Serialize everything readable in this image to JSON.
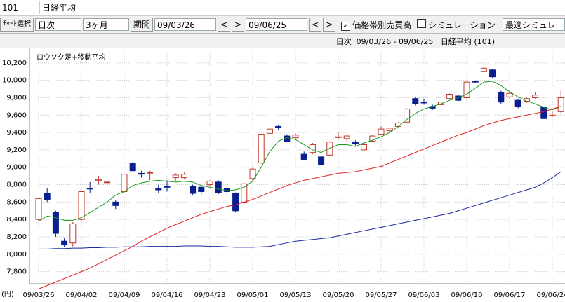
{
  "toolbar": {
    "code": "101",
    "name": "日経平均",
    "chart_select": "ﾁｬｰﾄ選択",
    "interval": "日次",
    "span": "3ヶ月",
    "period_label": "期間",
    "start": "09/03/26",
    "prev1": "<",
    "next1": ">",
    "end": "09/06/25",
    "prev2": "<",
    "next2": ">",
    "volume_profile": {
      "label": "価格帯別売買高",
      "checked": true
    },
    "simulation": {
      "label": "シミュレーション",
      "checked": false
    },
    "best_simulation": "最適シミュレーション"
  },
  "info": "日次  09/03/26 - 09/06/25   日経平均 (101)",
  "chart_data": {
    "type": "candlestick",
    "title": "ロウソク足+移動平均",
    "y_unit": "(円)",
    "categories": [
      "09/03/26",
      null,
      null,
      null,
      null,
      "09/04/02",
      null,
      null,
      null,
      null,
      "09/04/09",
      null,
      null,
      null,
      null,
      "09/04/16",
      null,
      null,
      null,
      null,
      "09/04/23",
      null,
      null,
      null,
      null,
      "09/05/01",
      null,
      null,
      null,
      null,
      "09/05/13",
      null,
      null,
      null,
      null,
      "09/05/20",
      null,
      null,
      null,
      null,
      "09/05/27",
      null,
      null,
      null,
      null,
      "09/06/03",
      null,
      null,
      null,
      null,
      "09/06/10",
      null,
      null,
      null,
      null,
      "09/06/17",
      null,
      null,
      null,
      null,
      "09/06/24",
      null
    ],
    "open": [
      8400,
      8700,
      8480,
      8150,
      8130,
      8400,
      8760,
      8850,
      8830,
      8600,
      8720,
      9050,
      8930,
      8940,
      8760,
      8780,
      8880,
      8880,
      8780,
      8770,
      8800,
      8830,
      8760,
      8700,
      8600,
      8870,
      9050,
      9390,
      9470,
      9360,
      9340,
      9150,
      9170,
      9120,
      9140,
      9350,
      9330,
      9290,
      9200,
      9300,
      9380,
      9420,
      9470,
      9520,
      9790,
      9750,
      9700,
      9720,
      9790,
      9820,
      9800,
      9990,
      10100,
      10120,
      9860,
      9810,
      9770,
      9760,
      9800,
      9690,
      9590,
      9640
    ],
    "high": [
      8650,
      8760,
      8500,
      8190,
      8370,
      8730,
      8830,
      8900,
      8870,
      8620,
      8930,
      9060,
      8960,
      8960,
      8800,
      8850,
      8930,
      8940,
      8800,
      8790,
      8850,
      8850,
      8790,
      8710,
      8820,
      9000,
      9380,
      9450,
      9490,
      9380,
      9390,
      9180,
      9280,
      9140,
      9300,
      9400,
      9380,
      9310,
      9300,
      9370,
      9470,
      9450,
      9520,
      9680,
      9810,
      9780,
      9720,
      9760,
      9850,
      9840,
      9990,
      10000,
      10200,
      10130,
      9880,
      9870,
      9790,
      9800,
      9860,
      9700,
      9640,
      9880
    ],
    "low": [
      8380,
      8600,
      8200,
      8080,
      8090,
      8380,
      8700,
      8800,
      8800,
      8520,
      8700,
      8960,
      8880,
      8850,
      8700,
      8720,
      8840,
      8860,
      8680,
      8690,
      8780,
      8690,
      8680,
      8480,
      8580,
      8850,
      9040,
      9380,
      9430,
      9290,
      9320,
      9080,
      9150,
      9010,
      9130,
      9330,
      9300,
      9250,
      9180,
      9290,
      9370,
      9400,
      9460,
      9510,
      9710,
      9720,
      9660,
      9700,
      9780,
      9760,
      9790,
      9970,
      10080,
      10030,
      9730,
      9790,
      9680,
      9740,
      9790,
      9560,
      9580,
      9620
    ],
    "close": [
      8640,
      8630,
      8240,
      8110,
      8350,
      8720,
      8750,
      8860,
      8830,
      8560,
      8920,
      8960,
      8920,
      8940,
      8740,
      8770,
      8910,
      8920,
      8700,
      8720,
      8840,
      8710,
      8720,
      8500,
      8810,
      8980,
      9380,
      9440,
      9460,
      9300,
      9370,
      9090,
      9260,
      9030,
      9290,
      9350,
      9360,
      9270,
      9260,
      9360,
      9440,
      9450,
      9510,
      9670,
      9730,
      9740,
      9680,
      9750,
      9840,
      9770,
      9980,
      9980,
      10140,
      10040,
      9750,
      9850,
      9700,
      9790,
      9830,
      9560,
      9600,
      9800
    ],
    "up_color": "#c0392b",
    "down_color": "#0a1f8f",
    "series": [
      {
        "color": "#1a9a1a",
        "values": [
          8380,
          8440,
          8420,
          8390,
          8390,
          8420,
          8480,
          8540,
          8600,
          8680,
          8720,
          8790,
          8820,
          8840,
          8850,
          8840,
          8830,
          8840,
          8830,
          8790,
          8770,
          8750,
          8730,
          8740,
          8770,
          8840,
          9000,
          9180,
          9300,
          9340,
          9320,
          9260,
          9200,
          9170,
          9220,
          9260,
          9260,
          9240,
          9280,
          9310,
          9350,
          9400,
          9470,
          9550,
          9620,
          9670,
          9700,
          9730,
          9770,
          9800,
          9840,
          9910,
          9980,
          9990,
          9940,
          9870,
          9810,
          9760,
          9730,
          9690,
          9660,
          9700
        ]
      },
      {
        "color": "#e02020",
        "values": [
          7600,
          7640,
          7680,
          7720,
          7760,
          7800,
          7840,
          7890,
          7940,
          7990,
          8040,
          8090,
          8150,
          8200,
          8250,
          8300,
          8340,
          8380,
          8420,
          8460,
          8490,
          8520,
          8550,
          8570,
          8600,
          8630,
          8670,
          8710,
          8750,
          8790,
          8820,
          8850,
          8870,
          8890,
          8910,
          8930,
          8940,
          8950,
          8970,
          8990,
          9010,
          9050,
          9090,
          9130,
          9170,
          9210,
          9250,
          9290,
          9330,
          9370,
          9400,
          9440,
          9480,
          9510,
          9540,
          9560,
          9580,
          9600,
          9620,
          9640,
          9670,
          9700
        ]
      },
      {
        "color": "#1a2aa0",
        "values": [
          8060,
          8060,
          8065,
          8065,
          8070,
          8070,
          8075,
          8075,
          8080,
          8080,
          8085,
          8085,
          8085,
          8090,
          8090,
          8090,
          8090,
          8095,
          8095,
          8095,
          8090,
          8090,
          8085,
          8080,
          8080,
          8080,
          8085,
          8090,
          8110,
          8130,
          8150,
          8160,
          8170,
          8180,
          8190,
          8210,
          8230,
          8250,
          8270,
          8290,
          8310,
          8330,
          8350,
          8370,
          8390,
          8410,
          8430,
          8450,
          8470,
          8500,
          8530,
          8560,
          8590,
          8620,
          8650,
          8680,
          8710,
          8740,
          8770,
          8820,
          8880,
          8950
        ]
      }
    ],
    "ylim": [
      7660,
      10360
    ],
    "yticks": [
      {
        "value": 7800,
        "label": "7,800"
      },
      {
        "value": 8000,
        "label": "8,000"
      },
      {
        "value": 8200,
        "label": "8,200"
      },
      {
        "value": 8400,
        "label": "8,400"
      },
      {
        "value": 8600,
        "label": "8,600"
      },
      {
        "value": 8800,
        "label": "8,800"
      },
      {
        "value": 9000,
        "label": "9,000"
      },
      {
        "value": 9200,
        "label": "9,200"
      },
      {
        "value": 9400,
        "label": "9,400"
      },
      {
        "value": 9600,
        "label": "9,600"
      },
      {
        "value": 9800,
        "label": "9,800"
      },
      {
        "value": 10000,
        "label": "10,000"
      },
      {
        "value": 10200,
        "label": "10,200"
      }
    ],
    "grid": true
  }
}
